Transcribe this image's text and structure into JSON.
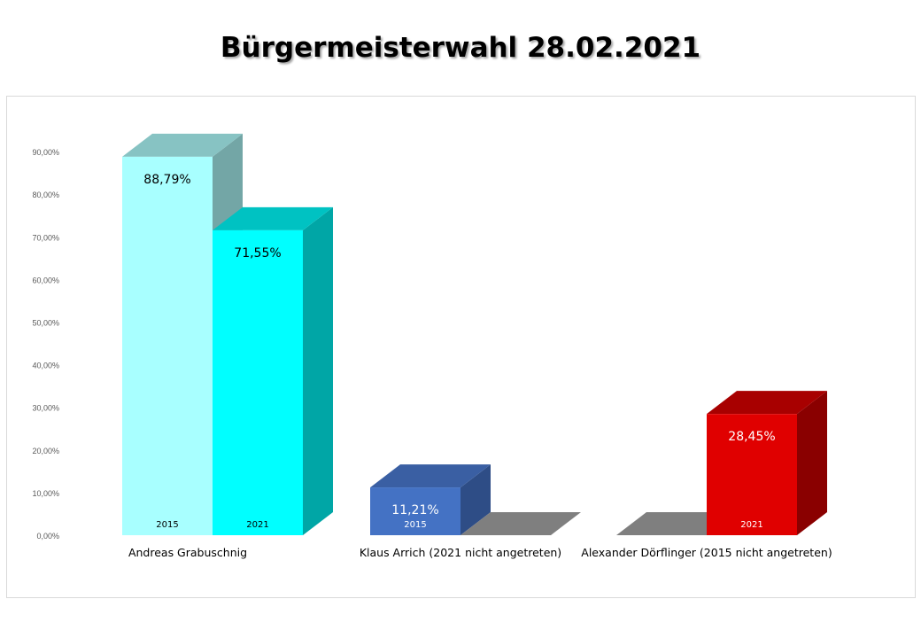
{
  "title": "Bürgermeisterwahl 28.02.2021",
  "chart_data": {
    "type": "bar",
    "title": "Bürgermeisterwahl 28.02.2021",
    "ylim": [
      0,
      90
    ],
    "yticks": [
      0,
      10,
      20,
      30,
      40,
      50,
      60,
      70,
      80,
      90
    ],
    "ytick_labels": [
      "0,00%",
      "10,00%",
      "20,00%",
      "30,00%",
      "40,00%",
      "50,00%",
      "60,00%",
      "70,00%",
      "80,00%",
      "90,00%"
    ],
    "categories": [
      "Andreas Grabuschnig",
      "Klaus Arrich  (2021 nicht angetreten)",
      "Alexander Dörflinger (2015 nicht angetreten)"
    ],
    "series": [
      {
        "name": "2015",
        "values": [
          88.79,
          11.21,
          0
        ],
        "data_labels": [
          "88,79%",
          "11,21%",
          ""
        ],
        "colors": [
          "#a8ffff",
          "#4472c4",
          "#7f7f7f"
        ],
        "side_colors": [
          "#73a6a6",
          "#2e4d86",
          "#7f7f7f"
        ],
        "top_colors": [
          "#87c3c3",
          "#3a5fa3",
          "#7f7f7f"
        ],
        "label_colors": [
          "#000000",
          "#ffffff",
          "#ffffff"
        ],
        "year_label_colors": [
          "#000000",
          "#ffffff",
          "#ffffff"
        ]
      },
      {
        "name": "2021",
        "values": [
          71.55,
          0,
          28.45
        ],
        "data_labels": [
          "71,55%",
          "",
          "28,45%"
        ],
        "colors": [
          "#00ffff",
          "#7f7f7f",
          "#e00000"
        ],
        "side_colors": [
          "#00a6a6",
          "#7f7f7f",
          "#8a0000"
        ],
        "top_colors": [
          "#00c2c2",
          "#7f7f7f",
          "#a80000"
        ],
        "label_colors": [
          "#000000",
          "#ffffff",
          "#ffffff"
        ],
        "year_label_colors": [
          "#000000",
          "#ffffff",
          "#ffffff"
        ]
      }
    ],
    "grid": false,
    "style": "3d-clustered-column"
  }
}
